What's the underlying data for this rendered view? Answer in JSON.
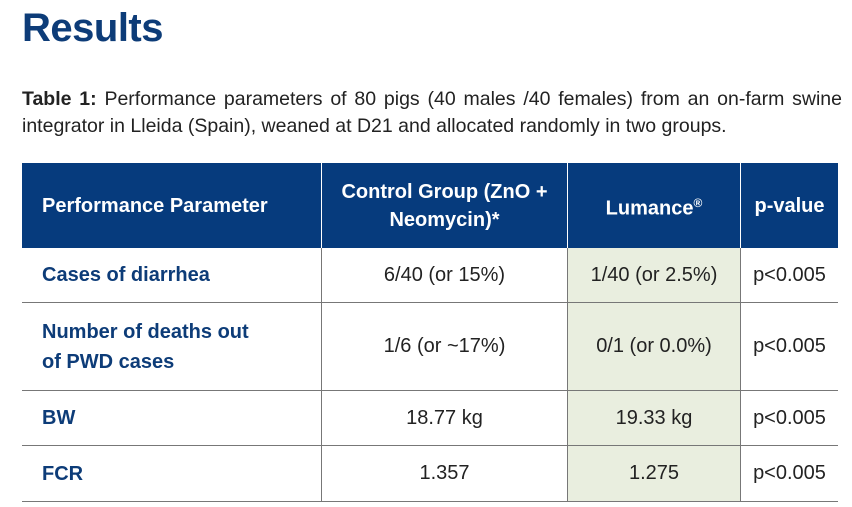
{
  "title": "Results",
  "caption": {
    "label": "Table 1:",
    "text": " Performance parameters of 80 pigs (40 males /40 females) from an on-farm swine integrator in Lleida (Spain), weaned at D21 and allocated randomly in two groups."
  },
  "table": {
    "headers": [
      "Performance Parameter",
      "Control Group (ZnO + Neomycin)*",
      "Lumance",
      "p-value"
    ],
    "header_sup": "®",
    "rows": [
      {
        "parameter": "Cases of diarrhea",
        "control": "6/40 (or 15%)",
        "lumance": "1/40 (or 2.5%)",
        "p": "p<0.005"
      },
      {
        "parameter": "Number of deaths out of PWD cases",
        "control": "1/6 (or ~17%)",
        "lumance": "0/1 (or 0.0%)",
        "p": "p<0.005"
      },
      {
        "parameter": "BW",
        "control": "18.77 kg",
        "lumance": "19.33 kg",
        "p": "p<0.005"
      },
      {
        "parameter": "FCR",
        "control": "1.357",
        "lumance": "1.275",
        "p": "p<0.005"
      }
    ]
  },
  "colors": {
    "header_bg": "#063b7d",
    "highlight": "#e9eedf",
    "title": "#0d3c78"
  }
}
